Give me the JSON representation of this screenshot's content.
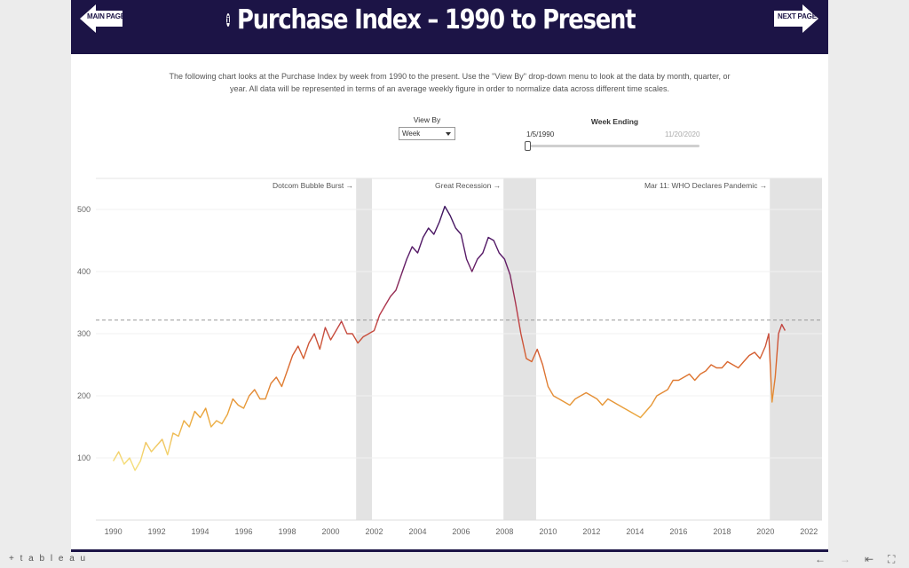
{
  "header": {
    "title": "Purchase Index – 1990 to Present",
    "main_page_label": "MAIN PAGE",
    "next_page_label": "NEXT PAGE"
  },
  "description": "The following chart looks at the Purchase Index by week from 1990 to the present. Use the \"View By\" drop-down menu to look at the data by month, quarter, or year.  All data will be represented in terms of an average weekly figure in order to normalize data across different time scales.",
  "controls": {
    "view_by_label": "View By",
    "view_by_value": "Week",
    "week_ending_label": "Week Ending",
    "week_ending_start": "1/5/1990",
    "week_ending_end": "11/20/2020",
    "slider_position": 0
  },
  "footer": {
    "logo": "+ t a b l e a u"
  },
  "chart_data": {
    "type": "line",
    "title": "",
    "xlabel": "",
    "ylabel": "",
    "xlim": [
      1989.2,
      2022.6
    ],
    "ylim": [
      0,
      550
    ],
    "x_ticks": [
      1990,
      1992,
      1994,
      1996,
      1998,
      2000,
      2002,
      2004,
      2006,
      2008,
      2010,
      2012,
      2014,
      2016,
      2018,
      2020,
      2022
    ],
    "y_ticks": [
      100,
      200,
      300,
      400,
      500
    ],
    "reference_line": 322,
    "color_gradient": [
      "#f5de7a",
      "#eaa43b",
      "#d9652e",
      "#b93a4a",
      "#5b1a68",
      "#3e1560"
    ],
    "recessions": [
      {
        "start": 2001.17,
        "end": 2001.9,
        "label": "Dotcom Bubble Burst →"
      },
      {
        "start": 2007.95,
        "end": 2009.45,
        "label": "Great Recession →"
      },
      {
        "start": 2020.2,
        "end": 2022.6,
        "label": "Mar 11: WHO Declares Pandemic →"
      }
    ],
    "series": [
      {
        "x": [
          1990.0,
          1990.25,
          1990.5,
          1990.75,
          1991.0,
          1991.25,
          1991.5,
          1991.75,
          1992.0,
          1992.25,
          1992.5,
          1992.75,
          1993.0,
          1993.25,
          1993.5,
          1993.75,
          1994.0,
          1994.25,
          1994.5,
          1994.75,
          1995.0,
          1995.25,
          1995.5,
          1995.75,
          1996.0,
          1996.25,
          1996.5,
          1996.75,
          1997.0,
          1997.25,
          1997.5,
          1997.75,
          1998.0,
          1998.25,
          1998.5,
          1998.75,
          1999.0,
          1999.25,
          1999.5,
          1999.75,
          2000.0,
          2000.25,
          2000.5,
          2000.75,
          2001.0,
          2001.25,
          2001.5,
          2001.75,
          2002.0,
          2002.25,
          2002.5,
          2002.75,
          2003.0,
          2003.25,
          2003.5,
          2003.75,
          2004.0,
          2004.25,
          2004.5,
          2004.75,
          2005.0,
          2005.25,
          2005.5,
          2005.75,
          2006.0,
          2006.25,
          2006.5,
          2006.75,
          2007.0,
          2007.25,
          2007.5,
          2007.75,
          2008.0,
          2008.25,
          2008.5,
          2008.75,
          2009.0,
          2009.25,
          2009.5,
          2009.75,
          2010.0,
          2010.25,
          2010.5,
          2010.75,
          2011.0,
          2011.25,
          2011.5,
          2011.75,
          2012.0,
          2012.25,
          2012.5,
          2012.75,
          2013.0,
          2013.25,
          2013.5,
          2013.75,
          2014.0,
          2014.25,
          2014.5,
          2014.75,
          2015.0,
          2015.25,
          2015.5,
          2015.75,
          2016.0,
          2016.25,
          2016.5,
          2016.75,
          2017.0,
          2017.25,
          2017.5,
          2017.75,
          2018.0,
          2018.25,
          2018.5,
          2018.75,
          2019.0,
          2019.25,
          2019.5,
          2019.75,
          2020.0,
          2020.15,
          2020.3,
          2020.45,
          2020.6,
          2020.75,
          2020.9
        ],
        "y": [
          95,
          110,
          90,
          100,
          80,
          95,
          125,
          110,
          120,
          130,
          105,
          140,
          135,
          160,
          150,
          175,
          165,
          180,
          150,
          160,
          155,
          170,
          195,
          185,
          180,
          200,
          210,
          195,
          195,
          220,
          230,
          215,
          240,
          265,
          280,
          260,
          285,
          300,
          275,
          310,
          290,
          305,
          320,
          300,
          300,
          285,
          295,
          300,
          305,
          330,
          345,
          360,
          370,
          395,
          420,
          440,
          430,
          455,
          470,
          460,
          480,
          505,
          490,
          470,
          460,
          420,
          400,
          420,
          430,
          455,
          450,
          430,
          420,
          395,
          350,
          300,
          260,
          255,
          275,
          250,
          215,
          200,
          195,
          190,
          185,
          195,
          200,
          205,
          200,
          195,
          185,
          195,
          190,
          185,
          180,
          175,
          170,
          165,
          175,
          185,
          200,
          205,
          210,
          225,
          225,
          230,
          235,
          225,
          235,
          240,
          250,
          245,
          245,
          255,
          250,
          245,
          255,
          265,
          270,
          260,
          280,
          300,
          190,
          230,
          300,
          315,
          305
        ]
      }
    ]
  }
}
